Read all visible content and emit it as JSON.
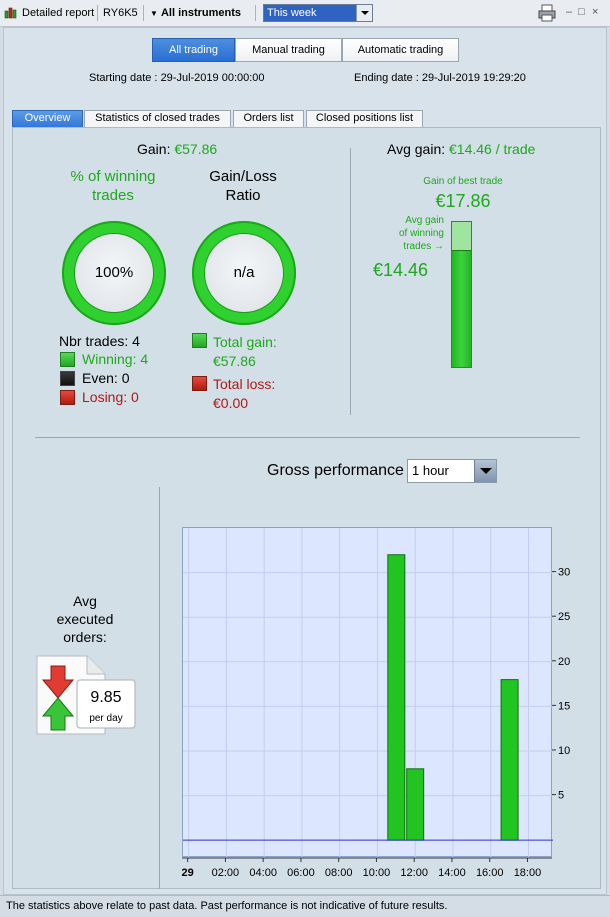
{
  "titlebar": {
    "report_label": "Detailed report",
    "account": "RY6K5",
    "instruments_label": "All instruments",
    "period_value": "This week",
    "controls": [
      "–",
      "□",
      "×"
    ]
  },
  "modes": [
    {
      "label": "All trading",
      "active": true
    },
    {
      "label": "Manual trading",
      "active": false
    },
    {
      "label": "Automatic trading",
      "active": false
    }
  ],
  "dates": {
    "start_label": "Starting date :",
    "start_value": "29-Jul-2019 00:00:00",
    "end_label": "Ending date :",
    "end_value": "29-Jul-2019 19:29:20"
  },
  "tabs": [
    {
      "label": "Overview",
      "active": true
    },
    {
      "label": "Statistics of closed trades",
      "active": false
    },
    {
      "label": "Orders list",
      "active": false
    },
    {
      "label": "Closed positions list",
      "active": false
    }
  ],
  "overview": {
    "gain_label": "Gain:",
    "gain_value": "€57.86",
    "win_title_1": "% of winning",
    "win_title_2": "trades",
    "win_value": "100%",
    "ratio_title_1": "Gain/Loss",
    "ratio_title_2": "Ratio",
    "ratio_value": "n/a",
    "nbr_trades": "Nbr trades: 4",
    "winning": "Winning: 4",
    "even": "Even: 0",
    "losing": "Losing: 0",
    "total_gain_label": "Total gain:",
    "total_gain_value": "€57.86",
    "total_loss_label": "Total loss:",
    "total_loss_value": "€0.00",
    "avg_gain_label": "Avg gain:",
    "avg_gain_value": "€14.46 / trade",
    "best_trade_label": "Gain of best trade",
    "best_trade_value": "€17.86",
    "avg_winning_label_1": "Avg gain",
    "avg_winning_label_2": "of winning",
    "avg_winning_label_3": "trades",
    "avg_winning_value": "€14.46",
    "avg_fill_fraction": 0.81,
    "avg_orders_title_1": "Avg",
    "avg_orders_title_2": "executed",
    "avg_orders_title_3": "orders:",
    "avg_orders_value": "9.85",
    "avg_orders_unit": "per day"
  },
  "gross": {
    "title": "Gross performance",
    "interval": "1 hour"
  },
  "chart_data": {
    "type": "bar",
    "x_ticks": [
      "29",
      "02:00",
      "04:00",
      "06:00",
      "08:00",
      "10:00",
      "12:00",
      "14:00",
      "16:00",
      "18:00"
    ],
    "x_tick_hours": [
      0,
      2,
      4,
      6,
      8,
      10,
      12,
      14,
      16,
      18
    ],
    "xlim": [
      -0.3,
      19.3
    ],
    "bars": [
      {
        "hour": 11,
        "value": 32
      },
      {
        "hour": 12,
        "value": 8
      },
      {
        "hour": 17,
        "value": 18
      }
    ],
    "y_ticks": [
      5,
      10,
      15,
      20,
      25,
      30
    ],
    "ylim": [
      -2,
      35
    ],
    "colors": {
      "bar": "#22c422",
      "bar_edge": "#0e6e0e",
      "baseline": "#3030c8",
      "grid": "#c2cdee"
    }
  },
  "footer": "The statistics above relate to past data. Past performance is not indicative of future results."
}
